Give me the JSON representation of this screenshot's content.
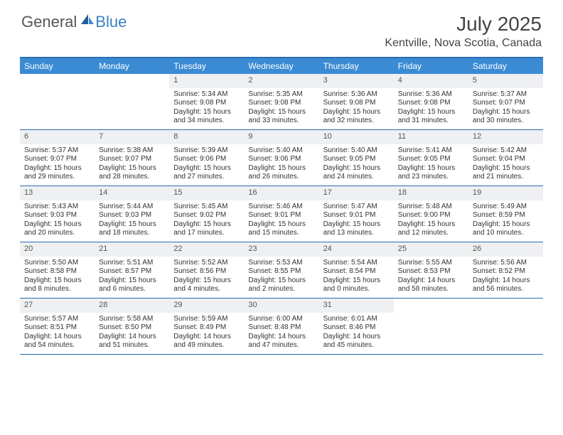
{
  "brand": {
    "part1": "General",
    "part2": "Blue"
  },
  "colors": {
    "header_bar": "#3b8bd4",
    "rule": "#2b6cb0",
    "daynum_bg": "#eef0f2",
    "text": "#333333",
    "logo_blue": "#3b7fc4"
  },
  "title": "July 2025",
  "location": "Kentville, Nova Scotia, Canada",
  "day_names": [
    "Sunday",
    "Monday",
    "Tuesday",
    "Wednesday",
    "Thursday",
    "Friday",
    "Saturday"
  ],
  "weeks": [
    [
      {
        "day": "",
        "lines": []
      },
      {
        "day": "",
        "lines": []
      },
      {
        "day": "1",
        "lines": [
          "Sunrise: 5:34 AM",
          "Sunset: 9:08 PM",
          "Daylight: 15 hours and 34 minutes."
        ]
      },
      {
        "day": "2",
        "lines": [
          "Sunrise: 5:35 AM",
          "Sunset: 9:08 PM",
          "Daylight: 15 hours and 33 minutes."
        ]
      },
      {
        "day": "3",
        "lines": [
          "Sunrise: 5:36 AM",
          "Sunset: 9:08 PM",
          "Daylight: 15 hours and 32 minutes."
        ]
      },
      {
        "day": "4",
        "lines": [
          "Sunrise: 5:36 AM",
          "Sunset: 9:08 PM",
          "Daylight: 15 hours and 31 minutes."
        ]
      },
      {
        "day": "5",
        "lines": [
          "Sunrise: 5:37 AM",
          "Sunset: 9:07 PM",
          "Daylight: 15 hours and 30 minutes."
        ]
      }
    ],
    [
      {
        "day": "6",
        "lines": [
          "Sunrise: 5:37 AM",
          "Sunset: 9:07 PM",
          "Daylight: 15 hours and 29 minutes."
        ]
      },
      {
        "day": "7",
        "lines": [
          "Sunrise: 5:38 AM",
          "Sunset: 9:07 PM",
          "Daylight: 15 hours and 28 minutes."
        ]
      },
      {
        "day": "8",
        "lines": [
          "Sunrise: 5:39 AM",
          "Sunset: 9:06 PM",
          "Daylight: 15 hours and 27 minutes."
        ]
      },
      {
        "day": "9",
        "lines": [
          "Sunrise: 5:40 AM",
          "Sunset: 9:06 PM",
          "Daylight: 15 hours and 26 minutes."
        ]
      },
      {
        "day": "10",
        "lines": [
          "Sunrise: 5:40 AM",
          "Sunset: 9:05 PM",
          "Daylight: 15 hours and 24 minutes."
        ]
      },
      {
        "day": "11",
        "lines": [
          "Sunrise: 5:41 AM",
          "Sunset: 9:05 PM",
          "Daylight: 15 hours and 23 minutes."
        ]
      },
      {
        "day": "12",
        "lines": [
          "Sunrise: 5:42 AM",
          "Sunset: 9:04 PM",
          "Daylight: 15 hours and 21 minutes."
        ]
      }
    ],
    [
      {
        "day": "13",
        "lines": [
          "Sunrise: 5:43 AM",
          "Sunset: 9:03 PM",
          "Daylight: 15 hours and 20 minutes."
        ]
      },
      {
        "day": "14",
        "lines": [
          "Sunrise: 5:44 AM",
          "Sunset: 9:03 PM",
          "Daylight: 15 hours and 18 minutes."
        ]
      },
      {
        "day": "15",
        "lines": [
          "Sunrise: 5:45 AM",
          "Sunset: 9:02 PM",
          "Daylight: 15 hours and 17 minutes."
        ]
      },
      {
        "day": "16",
        "lines": [
          "Sunrise: 5:46 AM",
          "Sunset: 9:01 PM",
          "Daylight: 15 hours and 15 minutes."
        ]
      },
      {
        "day": "17",
        "lines": [
          "Sunrise: 5:47 AM",
          "Sunset: 9:01 PM",
          "Daylight: 15 hours and 13 minutes."
        ]
      },
      {
        "day": "18",
        "lines": [
          "Sunrise: 5:48 AM",
          "Sunset: 9:00 PM",
          "Daylight: 15 hours and 12 minutes."
        ]
      },
      {
        "day": "19",
        "lines": [
          "Sunrise: 5:49 AM",
          "Sunset: 8:59 PM",
          "Daylight: 15 hours and 10 minutes."
        ]
      }
    ],
    [
      {
        "day": "20",
        "lines": [
          "Sunrise: 5:50 AM",
          "Sunset: 8:58 PM",
          "Daylight: 15 hours and 8 minutes."
        ]
      },
      {
        "day": "21",
        "lines": [
          "Sunrise: 5:51 AM",
          "Sunset: 8:57 PM",
          "Daylight: 15 hours and 6 minutes."
        ]
      },
      {
        "day": "22",
        "lines": [
          "Sunrise: 5:52 AM",
          "Sunset: 8:56 PM",
          "Daylight: 15 hours and 4 minutes."
        ]
      },
      {
        "day": "23",
        "lines": [
          "Sunrise: 5:53 AM",
          "Sunset: 8:55 PM",
          "Daylight: 15 hours and 2 minutes."
        ]
      },
      {
        "day": "24",
        "lines": [
          "Sunrise: 5:54 AM",
          "Sunset: 8:54 PM",
          "Daylight: 15 hours and 0 minutes."
        ]
      },
      {
        "day": "25",
        "lines": [
          "Sunrise: 5:55 AM",
          "Sunset: 8:53 PM",
          "Daylight: 14 hours and 58 minutes."
        ]
      },
      {
        "day": "26",
        "lines": [
          "Sunrise: 5:56 AM",
          "Sunset: 8:52 PM",
          "Daylight: 14 hours and 56 minutes."
        ]
      }
    ],
    [
      {
        "day": "27",
        "lines": [
          "Sunrise: 5:57 AM",
          "Sunset: 8:51 PM",
          "Daylight: 14 hours and 54 minutes."
        ]
      },
      {
        "day": "28",
        "lines": [
          "Sunrise: 5:58 AM",
          "Sunset: 8:50 PM",
          "Daylight: 14 hours and 51 minutes."
        ]
      },
      {
        "day": "29",
        "lines": [
          "Sunrise: 5:59 AM",
          "Sunset: 8:49 PM",
          "Daylight: 14 hours and 49 minutes."
        ]
      },
      {
        "day": "30",
        "lines": [
          "Sunrise: 6:00 AM",
          "Sunset: 8:48 PM",
          "Daylight: 14 hours and 47 minutes."
        ]
      },
      {
        "day": "31",
        "lines": [
          "Sunrise: 6:01 AM",
          "Sunset: 8:46 PM",
          "Daylight: 14 hours and 45 minutes."
        ]
      },
      {
        "day": "",
        "lines": []
      },
      {
        "day": "",
        "lines": []
      }
    ]
  ]
}
